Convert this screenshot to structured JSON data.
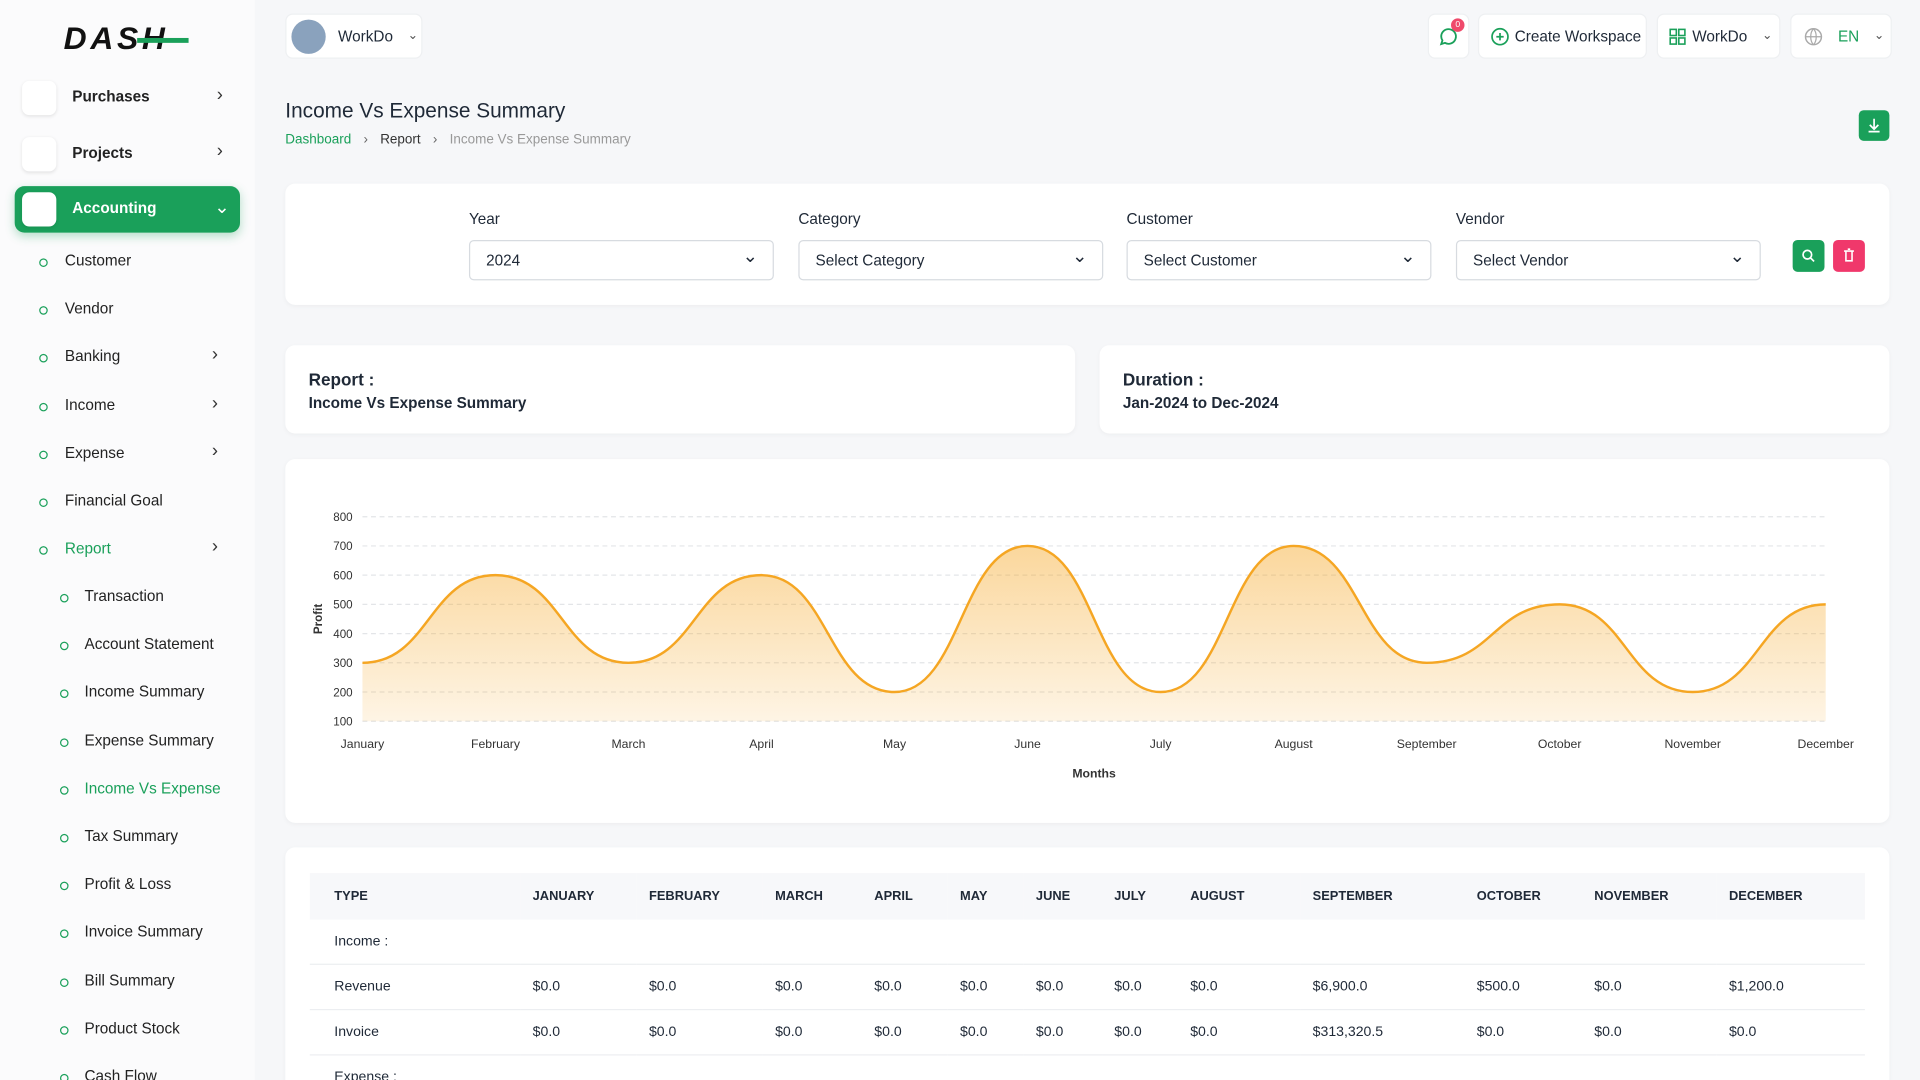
{
  "sidebar": {
    "logo": "DASH",
    "menu": [
      "Purchases",
      "Projects",
      "Accounting"
    ],
    "accounting": [
      "Customer",
      "Vendor",
      "Banking",
      "Income",
      "Expense",
      "Financial Goal",
      "Report"
    ],
    "report": [
      "Transaction",
      "Account Statement",
      "Income Summary",
      "Expense Summary",
      "Income Vs Expense",
      "Tax Summary",
      "Profit & Loss",
      "Invoice Summary",
      "Bill Summary",
      "Product Stock",
      "Cash Flow"
    ]
  },
  "header": {
    "workspace": "WorkDo",
    "notifications": "0",
    "create": "Create Workspace",
    "account": "WorkDo",
    "language": "EN"
  },
  "page": {
    "title": "Income Vs Expense Summary",
    "breadcrumb": [
      "Dashboard",
      "Report",
      "Income Vs Expense Summary"
    ]
  },
  "filters": [
    {
      "label": "Year",
      "value": "2024"
    },
    {
      "label": "Category",
      "value": "Select Category"
    },
    {
      "label": "Customer",
      "value": "Select Customer"
    },
    {
      "label": "Vendor",
      "value": "Select Vendor"
    }
  ],
  "summary": {
    "report_label": "Report :",
    "report": "Income Vs Expense Summary",
    "duration_label": "Duration :",
    "duration": "Jan-2024 to Dec-2024"
  },
  "chart_data": {
    "type": "area",
    "categories": [
      "January",
      "February",
      "March",
      "April",
      "May",
      "June",
      "July",
      "August",
      "September",
      "October",
      "November",
      "December"
    ],
    "values": [
      300,
      600,
      300,
      600,
      200,
      700,
      200,
      700,
      300,
      500,
      200,
      500
    ],
    "color": "#f5a623",
    "ylim": [
      100,
      800
    ],
    "yticks": [
      100,
      200,
      300,
      400,
      500,
      600,
      700,
      800
    ],
    "x_label": "Months",
    "y_label": "Profit",
    "grid": true
  },
  "table": {
    "columns": [
      "TYPE",
      "JANUARY",
      "FEBRUARY",
      "MARCH",
      "APRIL",
      "MAY",
      "JUNE",
      "JULY",
      "AUGUST",
      "SEPTEMBER",
      "OCTOBER",
      "NOVEMBER",
      "DECEMBER"
    ],
    "rows": [
      [
        "Income :"
      ],
      [
        "Revenue",
        "$0.0",
        "$0.0",
        "$0.0",
        "$0.0",
        "$0.0",
        "$0.0",
        "$0.0",
        "$0.0",
        "$6,900.0",
        "$500.0",
        "$0.0",
        "$1,200.0"
      ],
      [
        "Invoice",
        "$0.0",
        "$0.0",
        "$0.0",
        "$0.0",
        "$0.0",
        "$0.0",
        "$0.0",
        "$0.0",
        "$313,320.5",
        "$0.0",
        "$0.0",
        "$0.0"
      ],
      [
        "Expense :"
      ]
    ]
  }
}
